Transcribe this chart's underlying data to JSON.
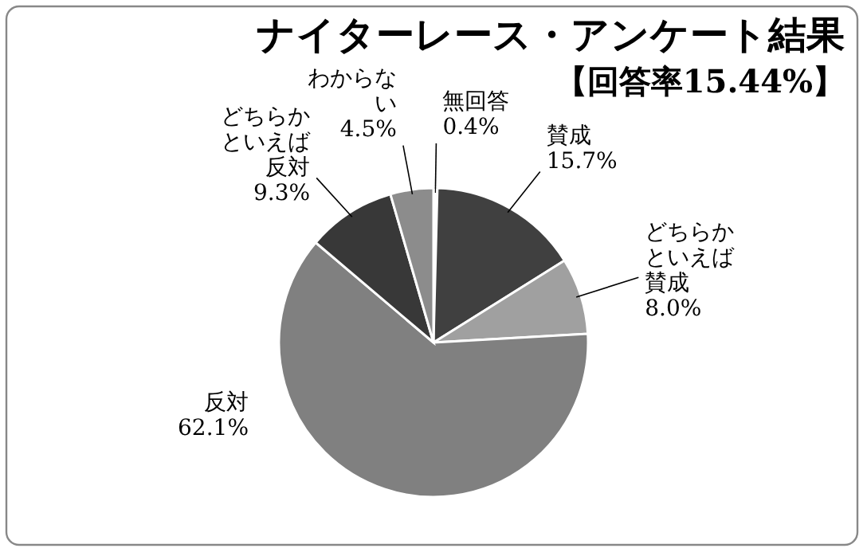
{
  "chart_data": {
    "type": "pie",
    "title": "ナイターレース・アンケート結果",
    "subtitle": "【回答率15.44%】",
    "categories": [
      "無回答",
      "賛成",
      "どちらかといえば賛成",
      "反対",
      "どちらかといえば反対",
      "わからない"
    ],
    "values": [
      0.4,
      15.7,
      8.0,
      62.1,
      9.3,
      4.5
    ],
    "value_labels": [
      "0.4%",
      "15.7%",
      "8.0%",
      "62.1%",
      "9.3%",
      "4.5%"
    ],
    "colors": [
      "#ffffff",
      "#404040",
      "#a0a0a0",
      "#808080",
      "#383838",
      "#8c8c8c"
    ]
  }
}
